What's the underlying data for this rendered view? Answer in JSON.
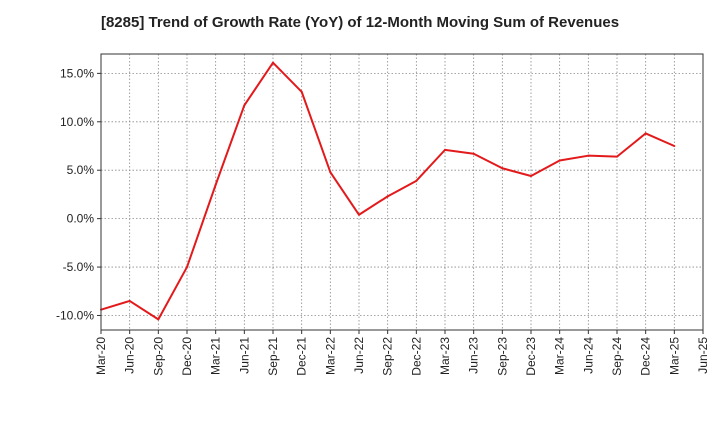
{
  "chart_data": {
    "type": "line",
    "title": "[8285]  Trend of Growth Rate (YoY) of 12-Month Moving Sum of Revenues",
    "xlabel": "",
    "ylabel": "",
    "x_ticks": [
      "Mar-20",
      "Jun-20",
      "Sep-20",
      "Dec-20",
      "Mar-21",
      "Jun-21",
      "Sep-21",
      "Dec-21",
      "Mar-22",
      "Jun-22",
      "Sep-22",
      "Dec-22",
      "Mar-23",
      "Jun-23",
      "Sep-23",
      "Dec-23",
      "Mar-24",
      "Jun-24",
      "Sep-24",
      "Dec-24",
      "Mar-25",
      "Jun-25"
    ],
    "y_ticks": [
      {
        "value": 15,
        "label": "15.0%"
      },
      {
        "value": 10,
        "label": "10.0%"
      },
      {
        "value": 5,
        "label": "5.0%"
      },
      {
        "value": 0,
        "label": "0.0%"
      },
      {
        "value": -5,
        "label": "-5.0%"
      },
      {
        "value": -10,
        "label": "-10.0%"
      }
    ],
    "ylim": [
      -11.5,
      17
    ],
    "grid": true,
    "series": [
      {
        "name": "",
        "color": "#e31a1c",
        "x": [
          "Mar-20",
          "Jun-20",
          "Sep-20",
          "Dec-20",
          "Mar-21",
          "Jun-21",
          "Sep-21",
          "Dec-21",
          "Mar-22",
          "Jun-22",
          "Sep-22",
          "Dec-22",
          "Mar-23",
          "Jun-23",
          "Sep-23",
          "Dec-23",
          "Mar-24",
          "Jun-24",
          "Sep-24",
          "Dec-24",
          "Mar-25"
        ],
        "values": [
          -9.4,
          -8.5,
          -10.4,
          -5.0,
          3.5,
          11.7,
          16.1,
          13.1,
          4.8,
          0.4,
          2.3,
          3.9,
          7.1,
          6.7,
          5.2,
          4.4,
          6.0,
          6.5,
          6.4,
          8.8,
          7.5
        ]
      }
    ]
  }
}
